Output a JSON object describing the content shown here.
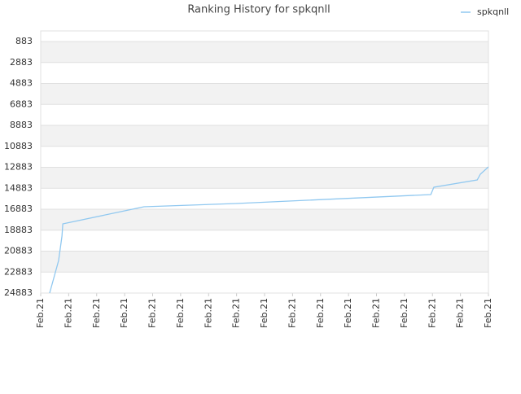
{
  "chart_data": {
    "type": "line",
    "title": "Ranking History for spkqnll",
    "x": [
      0.32,
      0.64,
      0.76,
      0.79,
      3.69,
      6.98,
      13.94,
      14.05,
      15.6,
      15.71,
      16
    ],
    "series": [
      {
        "name": "spkqnll",
        "color": "#90c8f0",
        "values": [
          24883,
          21776,
          19446,
          18281,
          16650,
          16339,
          15485,
          14786,
          14087,
          13543,
          12844
        ]
      }
    ],
    "xlim": [
      0,
      16
    ],
    "xticks": [
      {
        "value": 0,
        "label": "Feb.21"
      },
      {
        "value": 1,
        "label": "Feb.21"
      },
      {
        "value": 2,
        "label": "Feb.21"
      },
      {
        "value": 3,
        "label": "Feb.21"
      },
      {
        "value": 4,
        "label": "Feb.21"
      },
      {
        "value": 5,
        "label": "Feb.21"
      },
      {
        "value": 6,
        "label": "Feb.21"
      },
      {
        "value": 7,
        "label": "Feb.21"
      },
      {
        "value": 8,
        "label": "Feb.21"
      },
      {
        "value": 9,
        "label": "Feb.21"
      },
      {
        "value": 10,
        "label": "Feb.21"
      },
      {
        "value": 11,
        "label": "Feb.21"
      },
      {
        "value": 12,
        "label": "Feb.21"
      },
      {
        "value": 13,
        "label": "Feb.21"
      },
      {
        "value": 14,
        "label": "Feb.21"
      },
      {
        "value": 15,
        "label": "Feb.21"
      },
      {
        "value": 16,
        "label": "Feb.21"
      }
    ],
    "ylim": [
      24883,
      -127
    ],
    "yticks": [
      883,
      2883,
      4883,
      6883,
      8883,
      10883,
      12883,
      14883,
      16883,
      18883,
      20883,
      22883,
      24883
    ],
    "grid": true,
    "legend": "top-right"
  }
}
